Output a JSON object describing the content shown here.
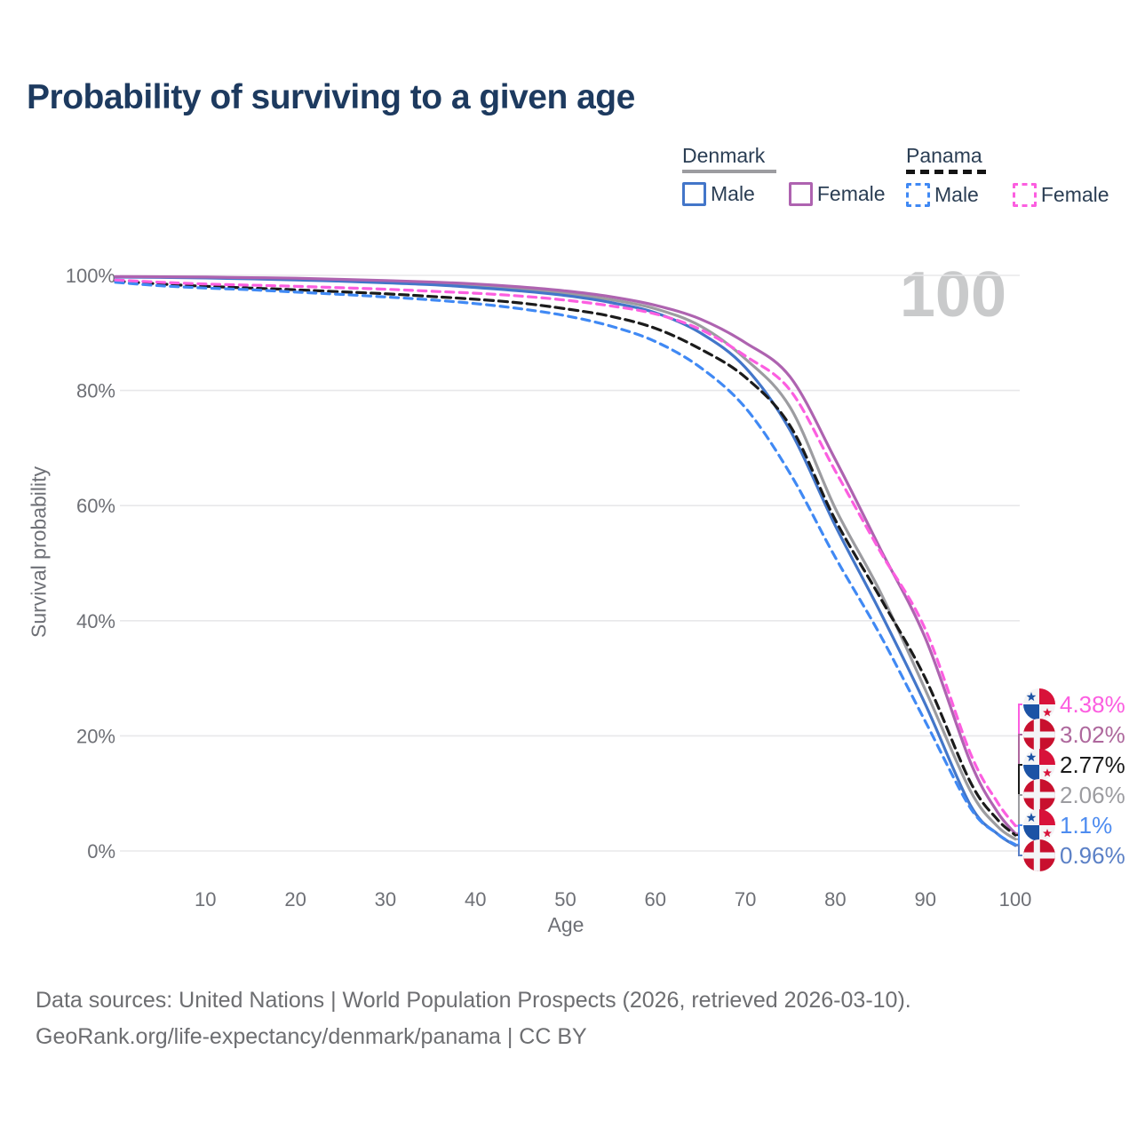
{
  "title": "Probability of surviving to a given age",
  "watermark": "100",
  "legend": {
    "denmark": {
      "label": "Denmark",
      "male_label": "Male",
      "female_label": "Female",
      "line_style": "solid",
      "line_color": "#9c9ca0"
    },
    "panama": {
      "label": "Panama",
      "male_label": "Male",
      "female_label": "Female",
      "line_style": "dashed",
      "line_color": "#141414"
    }
  },
  "footer": {
    "line1": "Data sources: United Nations | World Population Prospects (2026, retrieved 2026-03-10).",
    "line2": "GeoRank.org/life-expectancy/denmark/panama | CC BY"
  },
  "colors": {
    "title_text": "#1d3a5f",
    "legend_text": "#2b3e54",
    "tick_text": "#6e7076",
    "gridline": "#e8e8ea",
    "watermark": "#c9cacb",
    "flag_denmark_red": "#c8102e",
    "flag_panama_red": "#d8123a",
    "flag_panama_blue": "#1c53a5"
  },
  "chart_data": {
    "type": "line",
    "title": "Probability of surviving to a given age",
    "xlabel": "Age",
    "ylabel": "Survival probability",
    "xlim": [
      0,
      100
    ],
    "ylim": [
      0,
      100
    ],
    "grid": "horizontal",
    "legend_position": "top-right",
    "x_ticks": [
      10,
      20,
      30,
      40,
      50,
      60,
      70,
      80,
      90,
      100
    ],
    "y_ticks": [
      {
        "value": 100,
        "label": "100%"
      },
      {
        "value": 80,
        "label": "80%"
      },
      {
        "value": 60,
        "label": "60%"
      },
      {
        "value": 40,
        "label": "40%"
      },
      {
        "value": 20,
        "label": "20%"
      },
      {
        "value": 0,
        "label": "0%"
      }
    ],
    "ages": [
      0,
      5,
      10,
      15,
      20,
      25,
      30,
      35,
      40,
      45,
      50,
      55,
      60,
      65,
      70,
      75,
      80,
      85,
      90,
      95,
      98,
      100
    ],
    "series": [
      {
        "id": "denmark-total",
        "name": "Denmark",
        "country": "denmark",
        "sex": "both",
        "color": "#9c9ca0",
        "label_color": "#9c9ca0",
        "dash": "solid",
        "end_label": "2.06%",
        "end_value": 2.06,
        "values": [
          99.75,
          99.7,
          99.6,
          99.5,
          99.35,
          99.15,
          98.9,
          98.6,
          98.2,
          97.7,
          96.9,
          95.8,
          94.2,
          91.2,
          85.5,
          77.0,
          59.5,
          45.0,
          28.0,
          10.5,
          4.3,
          2.06
        ]
      },
      {
        "id": "denmark-male",
        "name": "Denmark Male",
        "country": "denmark",
        "sex": "male",
        "color": "#4376c9",
        "label_color": "#5b80c6",
        "dash": "solid",
        "end_label": "0.96%",
        "end_value": 0.96,
        "values": [
          99.7,
          99.65,
          99.55,
          99.4,
          99.2,
          99.0,
          98.7,
          98.4,
          97.9,
          97.3,
          96.5,
          95.3,
          93.5,
          90.0,
          84.0,
          73.0,
          56.5,
          41.5,
          25.5,
          8.0,
          3.0,
          0.96
        ]
      },
      {
        "id": "denmark-female",
        "name": "Denmark Female",
        "country": "denmark",
        "sex": "female",
        "color": "#ae63b0",
        "label_color": "#ae689d",
        "dash": "solid",
        "end_label": "3.02%",
        "end_value": 3.02,
        "values": [
          99.8,
          99.75,
          99.7,
          99.6,
          99.5,
          99.3,
          99.1,
          98.85,
          98.5,
          98.0,
          97.3,
          96.3,
          94.8,
          92.4,
          88.3,
          82.3,
          68.0,
          52.5,
          37.0,
          15.5,
          6.8,
          3.02
        ]
      },
      {
        "id": "panama-total",
        "name": "Panama",
        "country": "panama",
        "sex": "both",
        "color": "#1b1b1b",
        "label_color": "#1b1b1b",
        "dash": "dashed",
        "end_label": "2.77%",
        "end_value": 2.77,
        "values": [
          99.0,
          98.5,
          98.1,
          97.8,
          97.5,
          97.15,
          96.8,
          96.35,
          95.85,
          95.2,
          94.2,
          92.9,
          90.8,
          87.2,
          82.3,
          73.8,
          57.5,
          44.0,
          30.0,
          12.0,
          5.5,
          2.77
        ]
      },
      {
        "id": "panama-male",
        "name": "Panama Male",
        "country": "panama",
        "sex": "male",
        "color": "#4089f4",
        "label_color": "#4e8cf0",
        "dash": "dashed",
        "end_label": "1.1%",
        "end_value": 1.1,
        "values": [
          98.8,
          98.2,
          97.8,
          97.5,
          97.1,
          96.7,
          96.25,
          95.75,
          95.1,
          94.2,
          93.0,
          91.2,
          88.5,
          84.0,
          77.0,
          65.5,
          51.0,
          37.5,
          22.5,
          7.5,
          3.0,
          1.1
        ]
      },
      {
        "id": "panama-female",
        "name": "Panama Female",
        "country": "panama",
        "sex": "female",
        "color": "#fc5ee0",
        "label_color": "#fc5ee0",
        "dash": "dashed",
        "end_label": "4.38%",
        "end_value": 4.38,
        "values": [
          99.2,
          98.8,
          98.5,
          98.3,
          98.1,
          97.85,
          97.6,
          97.25,
          96.9,
          96.4,
          95.7,
          94.7,
          93.3,
          90.6,
          86.0,
          80.0,
          66.0,
          52.0,
          38.5,
          17.0,
          8.5,
          4.38
        ]
      }
    ]
  }
}
